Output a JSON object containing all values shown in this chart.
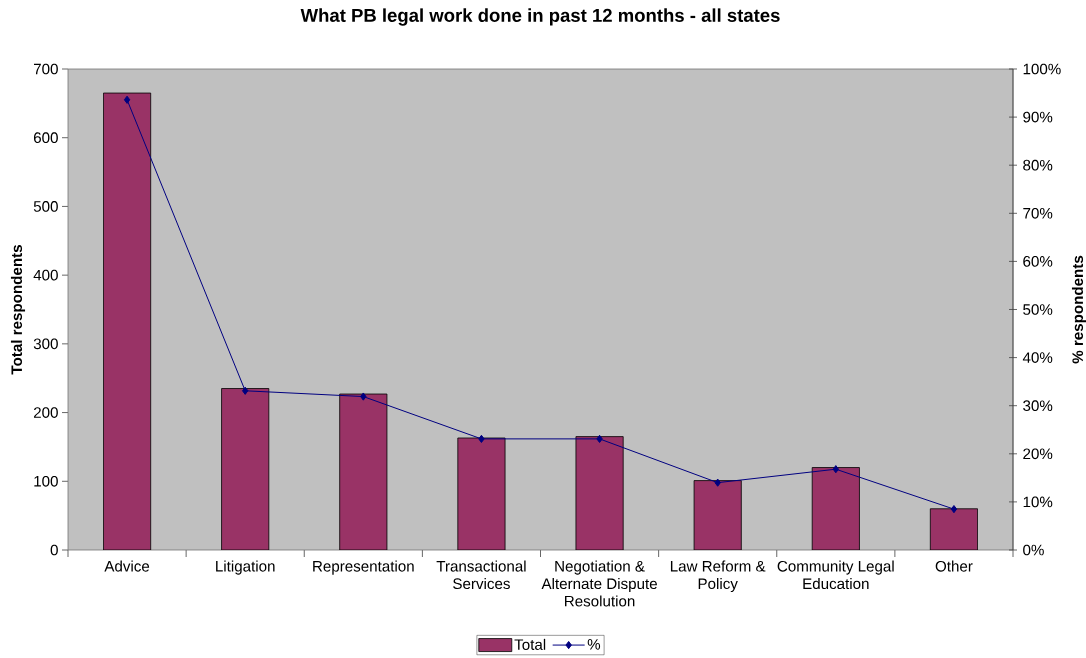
{
  "chart_data": {
    "type": "bar",
    "title": "What PB legal work done in past 12 months - all states",
    "ylabel": "Total respondents",
    "y2label": "% respondents",
    "categories": [
      "Advice",
      "Litigation",
      "Representation",
      "Transactional Services",
      "Negotiation & Alternate Dispute Resolution",
      "Law Reform & Policy",
      "Community Legal Education",
      "Other"
    ],
    "series": [
      {
        "name": "Total",
        "color": "#993366",
        "values": [
          665,
          235,
          227,
          163,
          165,
          101,
          120,
          60
        ]
      },
      {
        "name": "%",
        "type": "line",
        "axis": "y2",
        "color": "#000080",
        "marker": "diamond",
        "line_style": "solid",
        "values": [
          93.6,
          33.1,
          31.9,
          23.1,
          23.1,
          14.0,
          16.8,
          8.5
        ]
      }
    ],
    "ylim": [
      0,
      700
    ],
    "yticks": [
      0,
      100,
      200,
      300,
      400,
      500,
      600,
      700
    ],
    "y2lim": [
      0,
      100
    ],
    "y2ticks": [
      {
        "value": 0,
        "label": "0%"
      },
      {
        "value": 10,
        "label": "10%"
      },
      {
        "value": 20,
        "label": "20%"
      },
      {
        "value": 30,
        "label": "30%"
      },
      {
        "value": 40,
        "label": "40%"
      },
      {
        "value": 50,
        "label": "50%"
      },
      {
        "value": 60,
        "label": "60%"
      },
      {
        "value": 70,
        "label": "70%"
      },
      {
        "value": 80,
        "label": "80%"
      },
      {
        "value": 90,
        "label": "90%"
      },
      {
        "value": 100,
        "label": "100%"
      }
    ],
    "legend": "bottom"
  }
}
